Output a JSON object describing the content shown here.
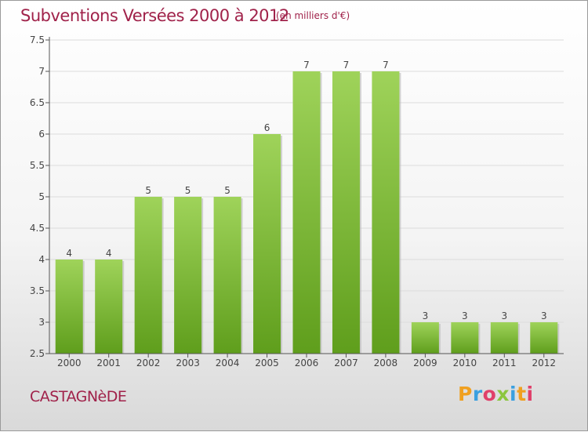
{
  "header": {
    "title": "Subventions Versées 2000 à 2012",
    "unit": "(en milliers d'€)"
  },
  "footer": {
    "commune": "CASTAGNèDE",
    "logo_letters": [
      "P",
      "r",
      "o",
      "x",
      "i",
      "t",
      "i"
    ],
    "logo_colors": [
      "#f0a020",
      "#3aa0e0",
      "#e0406a",
      "#8cc63f",
      "#3aa0e0",
      "#f0a020",
      "#e0406a"
    ]
  },
  "colors": {
    "title": "#a0224a",
    "bar_top": "#9fd35a",
    "bar_bottom": "#5f9e1c",
    "axis": "#555555",
    "grid": "#dcdcdc"
  },
  "chart_data": {
    "type": "bar",
    "categories": [
      "2000",
      "2001",
      "2002",
      "2003",
      "2004",
      "2005",
      "2006",
      "2007",
      "2008",
      "2009",
      "2010",
      "2011",
      "2012"
    ],
    "values": [
      4,
      4,
      5,
      5,
      5,
      6,
      7,
      7,
      7,
      3,
      3,
      3,
      3
    ],
    "value_labels": [
      "4",
      "4",
      "5",
      "5",
      "5",
      "6",
      "7",
      "7",
      "7",
      "3",
      "3",
      "3",
      "3"
    ],
    "yticks": [
      2.5,
      3,
      3.5,
      4,
      4.5,
      5,
      5.5,
      6,
      6.5,
      7,
      7.5
    ],
    "ytick_labels": [
      "2.5",
      "3",
      "3.5",
      "4",
      "4.5",
      "5",
      "5.5",
      "6",
      "6.5",
      "7",
      "7.5"
    ],
    "ylim": [
      2.5,
      7.5
    ],
    "grid": true
  }
}
